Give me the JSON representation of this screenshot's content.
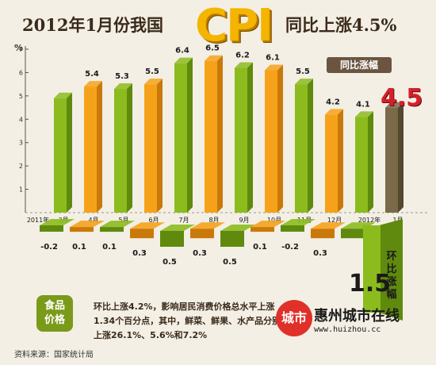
{
  "title": {
    "left": "2012年1月份我国",
    "cpi": "CPI",
    "right": "同比上涨4.5%"
  },
  "badge": "同比涨幅",
  "big_value": "4.5",
  "mom_value": "1.5",
  "mom_label": "环比涨幅",
  "food_label_1": "食品",
  "food_label_2": "价格",
  "food_text": "环比上涨4.2%，影响居民消费价格总水平上涨1.34个百分点，其中，鲜菜、鲜果、水产品分别上涨26.1%、5.6%和7.2%",
  "source": "资料来源：国家统计局",
  "logo_char": "城市",
  "logo_name": "惠州城市在线",
  "logo_url": "www.huizhou.cc",
  "chart_data": {
    "type": "bar",
    "y_unit": "%",
    "ylim": [
      0,
      7
    ],
    "yticks": [
      1,
      2,
      3,
      4,
      5,
      6,
      7
    ],
    "categories": [
      "2011年",
      "3月",
      "4月",
      "5月",
      "6月",
      "7月",
      "8月",
      "9月",
      "10月",
      "11月",
      "12月",
      "2012年",
      "1月"
    ],
    "months": [
      "2月",
      "3月",
      "4月",
      "5月",
      "6月",
      "7月",
      "8月",
      "9月",
      "10月",
      "11月",
      "12月",
      "1月"
    ],
    "yoy_values": [
      4.9,
      5.4,
      5.3,
      5.5,
      6.4,
      6.5,
      6.2,
      6.1,
      5.5,
      4.2,
      4.1,
      4.5
    ],
    "yoy_labels": [
      "",
      "5.4",
      "5.3",
      "5.5",
      "6.4",
      "6.5",
      "6.2",
      "6.1",
      "5.5",
      "4.2",
      "4.1",
      ""
    ],
    "mom_values": [
      -0.2,
      0.1,
      0.1,
      0.3,
      0.5,
      0.3,
      0.5,
      0.1,
      -0.2,
      0.3,
      0.3,
      1.5
    ],
    "mom_labels": [
      "-0.2",
      "0.1",
      "0.1",
      "0.3",
      "0.5",
      "0.3",
      "0.5",
      "0.1",
      "-0.2",
      "0.3",
      "",
      ""
    ],
    "x_labels": [
      "2011年",
      "3月",
      "4月",
      "5月",
      "6月",
      "7月",
      "8月",
      "9月",
      "10月",
      "11月",
      "12月",
      "2012年",
      "1月"
    ],
    "colors": {
      "green": "#8cbb1e",
      "green_dark": "#5f8a0e",
      "orange": "#f5a21a",
      "orange_dark": "#c9790a",
      "brown": "#7a6a4a",
      "brown_dark": "#54482e"
    }
  }
}
